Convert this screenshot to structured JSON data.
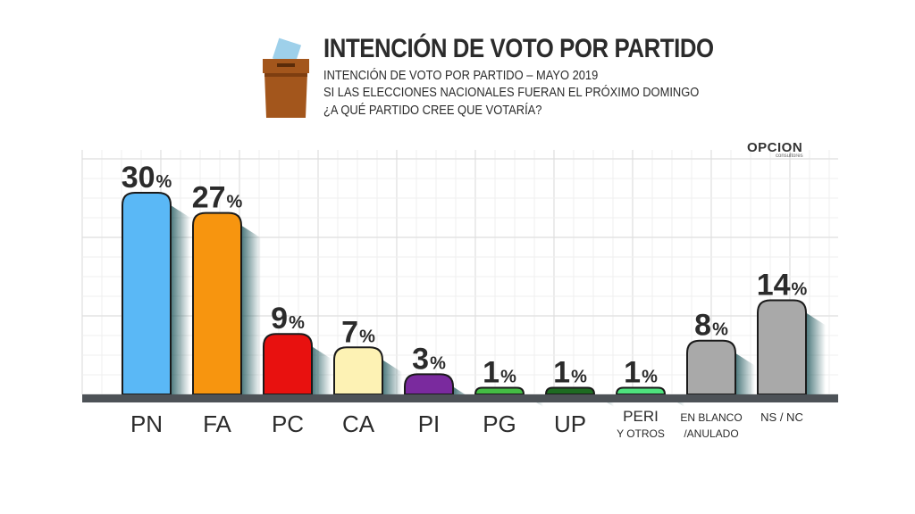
{
  "header": {
    "title": "INTENCIÓN DE VOTO POR PARTIDO",
    "subtitle": "INTENCIÓN DE VOTO POR PARTIDO – MAYO 2019",
    "question_line1": "SI LAS ELECCIONES NACIONALES FUERAN EL PRÓXIMO DOMINGO",
    "question_line2": "¿A QUÉ PARTIDO CREE QUE VOTARÍA?"
  },
  "logo": {
    "text": "OPCION",
    "subtext": "consultores"
  },
  "chart_data": {
    "type": "bar",
    "unit": "%",
    "ylim": [
      0,
      30
    ],
    "grid": true,
    "categories": [
      [
        "PN"
      ],
      [
        "FA"
      ],
      [
        "PC"
      ],
      [
        "CA"
      ],
      [
        "PI"
      ],
      [
        "PG"
      ],
      [
        "UP"
      ],
      [
        "PERI",
        "Y OTROS"
      ],
      [
        "EN BLANCO",
        "/ANULADO"
      ],
      [
        "NS / NC"
      ]
    ],
    "values": [
      30,
      27,
      9,
      7,
      3,
      1,
      1,
      1,
      8,
      14
    ],
    "colors": [
      "#5ab8f6",
      "#f7950f",
      "#e8110f",
      "#fdf2b4",
      "#7a2a9e",
      "#44bc44",
      "#1e6b22",
      "#4ee27d",
      "#a9a9a9",
      "#a9a9a9"
    ]
  }
}
